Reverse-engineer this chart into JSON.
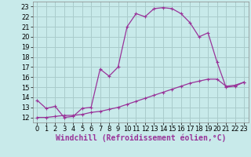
{
  "xlabel": "Windchill (Refroidissement éolien,°C)",
  "ylabel": "",
  "background_color": "#c8eaea",
  "grid_color": "#aacccc",
  "line_color": "#993399",
  "ylim": [
    11.5,
    23.5
  ],
  "xlim": [
    -0.5,
    23.5
  ],
  "yticks": [
    12,
    13,
    14,
    15,
    16,
    17,
    18,
    19,
    20,
    21,
    22,
    23
  ],
  "xticks": [
    0,
    1,
    2,
    3,
    4,
    5,
    6,
    7,
    8,
    9,
    10,
    11,
    12,
    13,
    14,
    15,
    16,
    17,
    18,
    19,
    20,
    21,
    22,
    23
  ],
  "line1_x": [
    0,
    1,
    2,
    3,
    4,
    5,
    6,
    7,
    8,
    9,
    10,
    11,
    12,
    13,
    14,
    15,
    16,
    17,
    18,
    19,
    20,
    21,
    22,
    23
  ],
  "line1_y": [
    13.7,
    12.9,
    13.1,
    12.0,
    12.1,
    12.9,
    13.0,
    16.8,
    16.1,
    17.0,
    21.0,
    22.3,
    22.0,
    22.8,
    22.9,
    22.8,
    22.3,
    21.4,
    20.0,
    20.4,
    17.5,
    15.0,
    15.1,
    15.5
  ],
  "line2_x": [
    0,
    1,
    2,
    3,
    4,
    5,
    6,
    7,
    8,
    9,
    10,
    11,
    12,
    13,
    14,
    15,
    16,
    17,
    18,
    19,
    20,
    21,
    22,
    23
  ],
  "line2_y": [
    12.0,
    12.0,
    12.1,
    12.2,
    12.2,
    12.3,
    12.5,
    12.6,
    12.8,
    13.0,
    13.3,
    13.6,
    13.9,
    14.2,
    14.5,
    14.8,
    15.1,
    15.4,
    15.6,
    15.8,
    15.8,
    15.1,
    15.2,
    15.5
  ],
  "marker": "P",
  "markersize": 2.5,
  "linewidth": 0.9,
  "tick_fontsize": 6,
  "xlabel_fontsize": 7
}
